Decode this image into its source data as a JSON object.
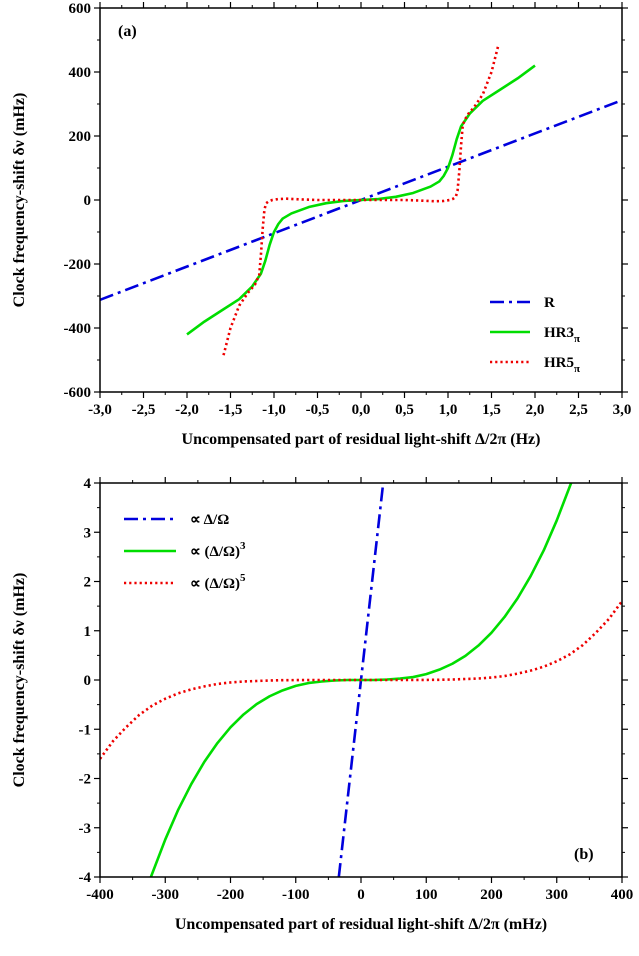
{
  "chart_data": [
    {
      "type": "line",
      "panel_label": "(a)",
      "xlabel": "Uncompensated part of residual light-shift Δ/2π  (Hz)",
      "ylabel": "Clock frequency-shift δν (mHz)",
      "xlim": [
        -3.0,
        3.0
      ],
      "ylim": [
        -600,
        600
      ],
      "xticks": [
        -3.0,
        -2.5,
        -2.0,
        -1.5,
        -1.0,
        -0.5,
        0.0,
        0.5,
        1.0,
        1.5,
        2.0,
        2.5,
        3.0
      ],
      "xtick_labels": [
        "-3,0",
        "-2,5",
        "-2,0",
        "-1,5",
        "-1,0",
        "-0,5",
        "0,0",
        "0,5",
        "1,0",
        "1,5",
        "2,0",
        "2,5",
        "3,0"
      ],
      "yticks": [
        -600,
        -400,
        -200,
        0,
        200,
        400,
        600
      ],
      "ytick_labels": [
        "-600",
        "-400",
        "-200",
        "0",
        "200",
        "400",
        "600"
      ],
      "legend_position": "bottom-right",
      "series": [
        {
          "name": "R",
          "color": "#0000dd",
          "style": "dashdot",
          "x": [
            -3.0,
            3.0
          ],
          "y": [
            -312,
            312
          ]
        },
        {
          "name": "HR3",
          "name_sub": "π",
          "color": "#00dd00",
          "style": "solid",
          "x": [
            -2.0,
            -1.8,
            -1.6,
            -1.4,
            -1.25,
            -1.15,
            -1.1,
            -1.05,
            -1.0,
            -0.95,
            -0.9,
            -0.8,
            -0.6,
            -0.4,
            -0.2,
            0.0,
            0.2,
            0.4,
            0.6,
            0.8,
            0.9,
            0.95,
            1.0,
            1.05,
            1.1,
            1.15,
            1.25,
            1.4,
            1.6,
            1.8,
            2.0
          ],
          "y": [
            -420,
            -380,
            -345,
            -310,
            -270,
            -230,
            -190,
            -140,
            -100,
            -75,
            -58,
            -42,
            -22,
            -10,
            -3,
            0,
            3,
            10,
            22,
            42,
            58,
            75,
            100,
            140,
            190,
            230,
            270,
            310,
            345,
            380,
            420
          ]
        },
        {
          "name": "HR5",
          "name_sub": "π",
          "color": "#ee0000",
          "style": "dotted",
          "x": [
            -1.58,
            -1.5,
            -1.4,
            -1.3,
            -1.22,
            -1.17,
            -1.15,
            -1.13,
            -1.11,
            -1.09,
            -1.06,
            -1.02,
            -0.95,
            -0.85,
            -0.7,
            -0.5,
            -0.3,
            0.0,
            0.3,
            0.5,
            0.7,
            0.85,
            0.95,
            1.02,
            1.06,
            1.09,
            1.11,
            1.13,
            1.15,
            1.17,
            1.22,
            1.3,
            1.4,
            1.5,
            1.58
          ],
          "y": [
            -485,
            -400,
            -330,
            -290,
            -265,
            -235,
            -170,
            -90,
            -30,
            -10,
            -4,
            0,
            3,
            4,
            2,
            0,
            0,
            0,
            0,
            0,
            -2,
            -4,
            -3,
            0,
            4,
            10,
            30,
            90,
            170,
            235,
            265,
            290,
            330,
            400,
            485
          ]
        }
      ]
    },
    {
      "type": "line",
      "panel_label": "(b)",
      "xlabel": "Uncompensated part of residual light-shift Δ/2π  (mHz)",
      "ylabel": "Clock frequency-shift δν (mHz)",
      "xlim": [
        -400,
        400
      ],
      "ylim": [
        -4,
        4
      ],
      "xticks": [
        -400,
        -300,
        -200,
        -100,
        0,
        100,
        200,
        300,
        400
      ],
      "xtick_labels": [
        "-400",
        "-300",
        "-200",
        "-100",
        "0",
        "100",
        "200",
        "300",
        "400"
      ],
      "yticks": [
        -4,
        -3,
        -2,
        -1,
        0,
        1,
        2,
        3,
        4
      ],
      "ytick_labels": [
        "-4",
        "-3",
        "-2",
        "-1",
        "0",
        "1",
        "2",
        "3",
        "4"
      ],
      "legend_position": "top-left",
      "series": [
        {
          "name": "∝ Δ/Ω",
          "color": "#0000dd",
          "style": "dashdot",
          "x": [
            -34,
            34
          ],
          "y": [
            -4,
            4
          ]
        },
        {
          "name": "∝ (Δ/Ω)",
          "name_sup": "3",
          "color": "#00dd00",
          "style": "solid",
          "x": [
            -322,
            -300,
            -280,
            -260,
            -240,
            -220,
            -200,
            -180,
            -160,
            -140,
            -120,
            -100,
            -80,
            -60,
            -40,
            -20,
            0,
            20,
            40,
            60,
            80,
            100,
            120,
            140,
            160,
            180,
            200,
            220,
            240,
            260,
            280,
            300,
            322
          ],
          "y": [
            -4.0,
            -3.24,
            -2.63,
            -2.11,
            -1.66,
            -1.28,
            -0.96,
            -0.7,
            -0.49,
            -0.33,
            -0.21,
            -0.12,
            -0.06,
            -0.03,
            -0.01,
            0.0,
            0.0,
            0.0,
            0.01,
            0.03,
            0.06,
            0.12,
            0.21,
            0.33,
            0.49,
            0.7,
            0.96,
            1.28,
            1.66,
            2.11,
            2.63,
            3.24,
            4.0
          ]
        },
        {
          "name": "∝ (Δ/Ω)",
          "name_sup": "5",
          "color": "#ee0000",
          "style": "dotted",
          "x": [
            -400,
            -380,
            -360,
            -340,
            -320,
            -300,
            -280,
            -260,
            -240,
            -220,
            -200,
            -180,
            -160,
            -140,
            -120,
            -100,
            -80,
            -60,
            -40,
            -20,
            0,
            20,
            40,
            60,
            80,
            100,
            120,
            140,
            160,
            180,
            200,
            220,
            240,
            260,
            280,
            300,
            320,
            340,
            360,
            380,
            400
          ],
          "y": [
            -1.6,
            -1.24,
            -0.96,
            -0.71,
            -0.52,
            -0.38,
            -0.27,
            -0.19,
            -0.13,
            -0.08,
            -0.05,
            -0.03,
            -0.02,
            -0.01,
            -0.004,
            -0.002,
            0.0,
            0.0,
            0.0,
            0.0,
            0.0,
            0.0,
            0.0,
            0.0,
            0.0,
            0.002,
            0.004,
            0.01,
            0.02,
            0.03,
            0.05,
            0.08,
            0.13,
            0.19,
            0.27,
            0.38,
            0.52,
            0.71,
            0.96,
            1.24,
            1.6
          ]
        }
      ]
    }
  ]
}
